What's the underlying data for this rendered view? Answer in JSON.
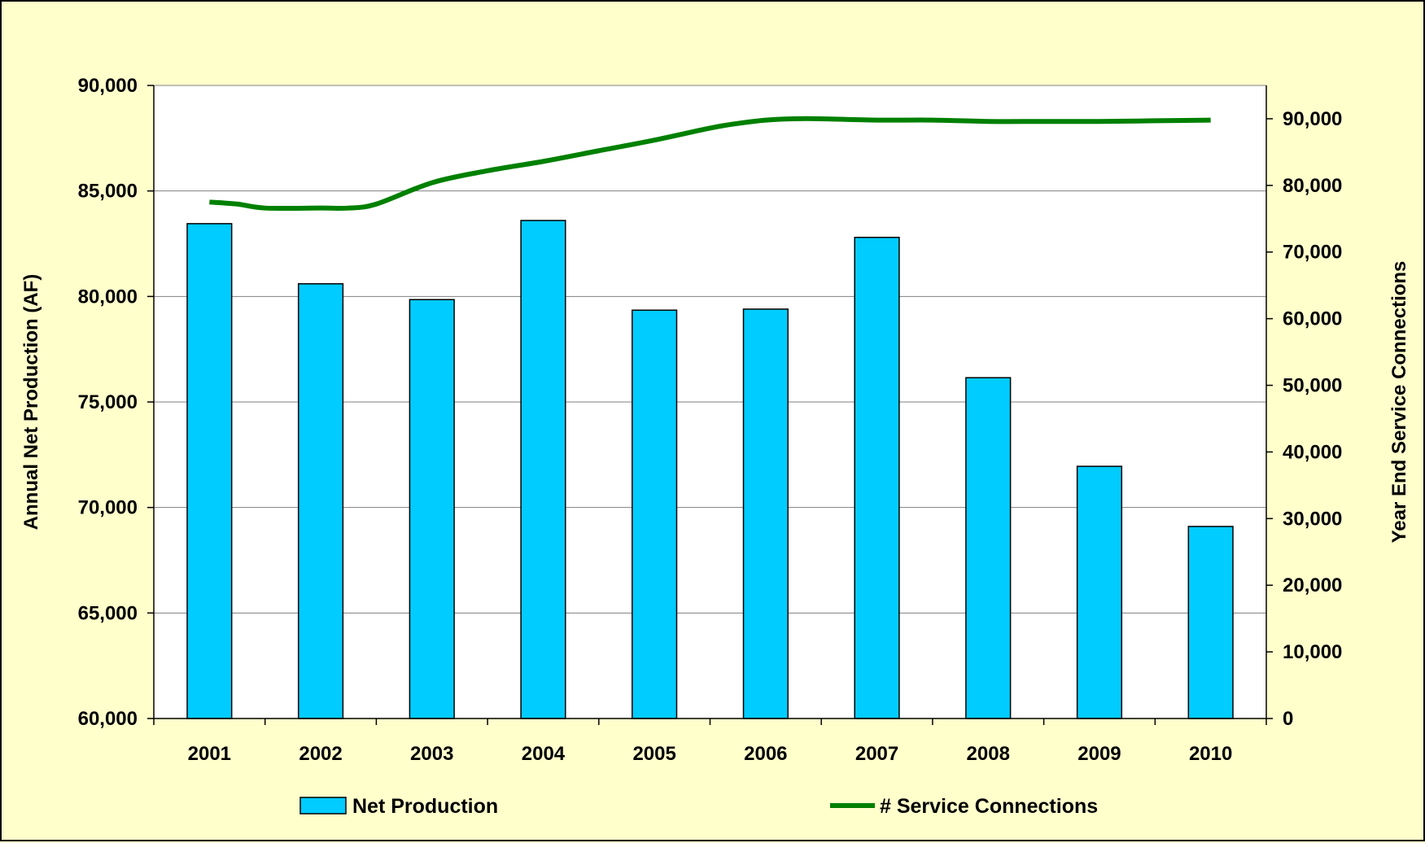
{
  "chart_data": {
    "type": "bar",
    "categories": [
      "2001",
      "2002",
      "2003",
      "2004",
      "2005",
      "2006",
      "2007",
      "2008",
      "2009",
      "2010"
    ],
    "series": [
      {
        "name": "Net Production",
        "type": "bar",
        "axis": "left",
        "color": "#00ccff",
        "values": [
          83450,
          80600,
          79850,
          83600,
          79350,
          79400,
          82800,
          76150,
          71950,
          69100
        ]
      },
      {
        "name": "# Service Connections",
        "type": "line",
        "axis": "right",
        "color": "#008000",
        "x": [
          2001.0,
          2001.25,
          2001.5,
          2002.0,
          2002.25,
          2002.5,
          2003.0,
          2003.5,
          2004.0,
          2004.5,
          2005.0,
          2005.5,
          2005.75,
          2006.0,
          2006.25,
          2006.5,
          2007.0,
          2007.5,
          2008.0,
          2008.5,
          2009.0,
          2009.5,
          2010.0
        ],
        "y": [
          77500,
          77200,
          76600,
          76600,
          76600,
          77200,
          80400,
          82200,
          83600,
          85200,
          86800,
          88600,
          89300,
          89800,
          90000,
          90000,
          89800,
          89800,
          89600,
          89600,
          89600,
          89700,
          89800
        ]
      }
    ],
    "title": "",
    "xlabel": "",
    "ylabel": "Annual Net Production (AF)",
    "y2label": "Year End Service Connections",
    "ylim": [
      60000,
      90000
    ],
    "y2lim": [
      0,
      95000
    ],
    "yticks": [
      "60,000",
      "65,000",
      "70,000",
      "75,000",
      "80,000",
      "85,000",
      "90,000"
    ],
    "yticks_values": [
      60000,
      65000,
      70000,
      75000,
      80000,
      85000,
      90000
    ],
    "y2ticks": [
      "0",
      "10,000",
      "20,000",
      "30,000",
      "40,000",
      "50,000",
      "60,000",
      "70,000",
      "80,000",
      "90,000"
    ],
    "y2ticks_values": [
      0,
      10000,
      20000,
      30000,
      40000,
      50000,
      60000,
      70000,
      80000,
      90000
    ],
    "grid": true,
    "legend": {
      "position": "bottom",
      "items": [
        "Net Production",
        "# Service Connections"
      ]
    },
    "background": "#ffffcc"
  }
}
